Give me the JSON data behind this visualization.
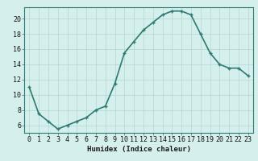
{
  "x": [
    0,
    1,
    2,
    3,
    4,
    5,
    6,
    7,
    8,
    9,
    10,
    11,
    12,
    13,
    14,
    15,
    16,
    17,
    18,
    19,
    20,
    21,
    22,
    23
  ],
  "y": [
    11.0,
    7.5,
    6.5,
    5.5,
    6.0,
    6.5,
    7.0,
    8.0,
    8.5,
    11.5,
    15.5,
    17.0,
    18.5,
    19.5,
    20.5,
    21.0,
    21.0,
    20.5,
    18.0,
    15.5,
    14.0,
    13.5,
    13.5,
    12.5
  ],
  "line_color": "#2d7a72",
  "marker": "+",
  "marker_size": 3.5,
  "marker_color": "#2d7a72",
  "background_color": "#d5efed",
  "grid_color": "#b0d8d4",
  "xlabel": "Humidex (Indice chaleur)",
  "xlim": [
    -0.5,
    23.5
  ],
  "ylim": [
    5.0,
    21.5
  ],
  "yticks": [
    6,
    8,
    10,
    12,
    14,
    16,
    18,
    20
  ],
  "xticks": [
    0,
    1,
    2,
    3,
    4,
    5,
    6,
    7,
    8,
    9,
    10,
    11,
    12,
    13,
    14,
    15,
    16,
    17,
    18,
    19,
    20,
    21,
    22,
    23
  ],
  "xlabel_fontsize": 6.5,
  "tick_fontsize": 6.0,
  "line_width": 1.2
}
